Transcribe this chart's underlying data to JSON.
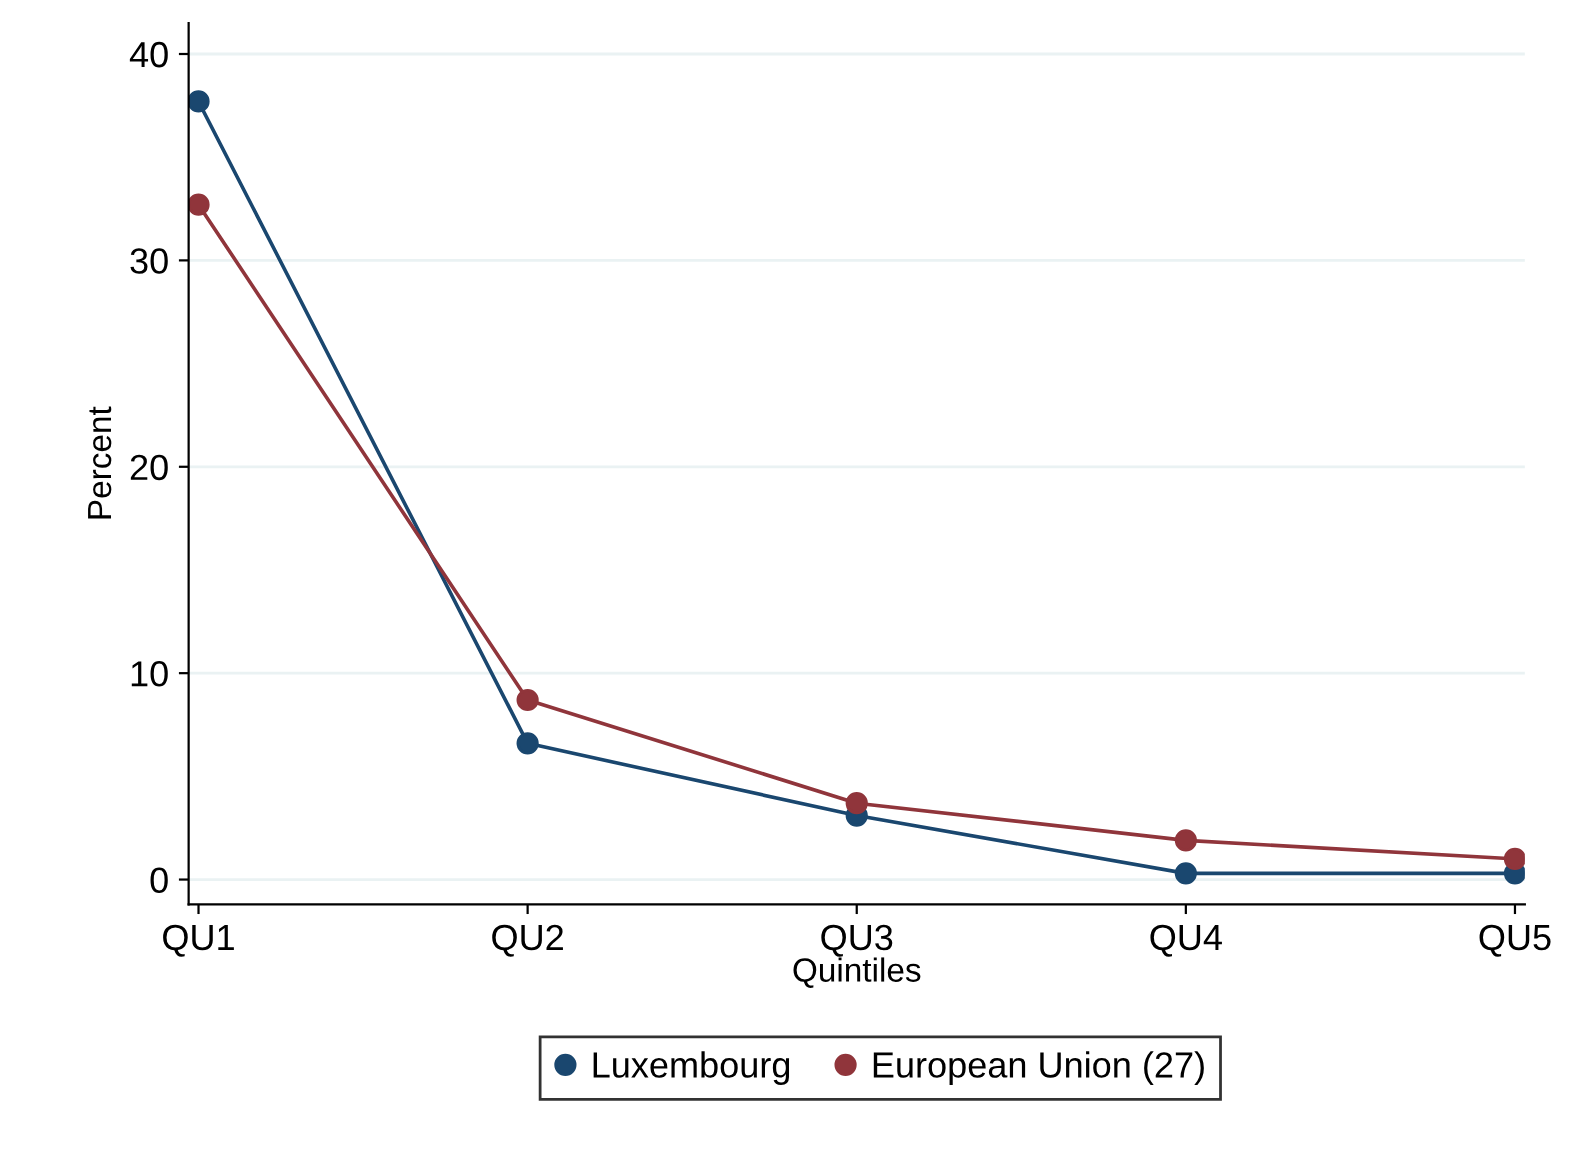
{
  "chart_data": {
    "type": "line",
    "xlabel": "Quintiles",
    "ylabel": "Percent",
    "categories": [
      "QU1",
      "QU2",
      "QU3",
      "QU4",
      "QU5"
    ],
    "series": [
      {
        "name": "Luxembourg",
        "color": "#1a476f",
        "values": [
          37.7,
          6.6,
          3.1,
          0.3,
          0.3
        ]
      },
      {
        "name": "European Union (27)",
        "color": "#90353b",
        "values": [
          32.7,
          8.7,
          3.7,
          1.9,
          1.0
        ]
      }
    ],
    "ylim": [
      -1.2,
      41.5
    ],
    "yticks": [
      0,
      10,
      20,
      30,
      40
    ],
    "grid": "y",
    "legend": "bottom",
    "marker": "circle",
    "line_style": "solid"
  }
}
